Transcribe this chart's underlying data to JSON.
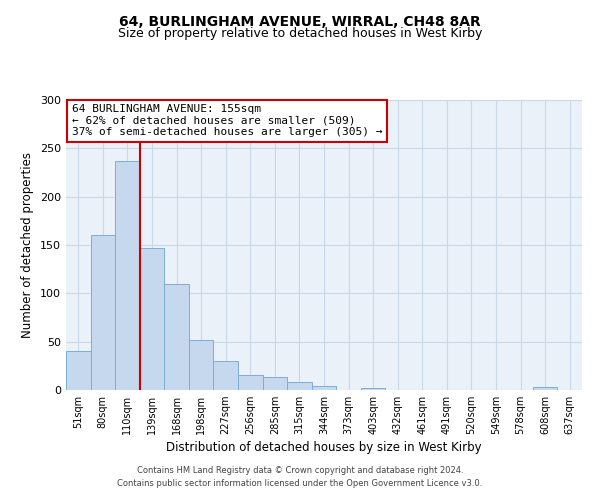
{
  "title": "64, BURLINGHAM AVENUE, WIRRAL, CH48 8AR",
  "subtitle": "Size of property relative to detached houses in West Kirby",
  "xlabel": "Distribution of detached houses by size in West Kirby",
  "ylabel": "Number of detached properties",
  "bin_labels": [
    "51sqm",
    "80sqm",
    "110sqm",
    "139sqm",
    "168sqm",
    "198sqm",
    "227sqm",
    "256sqm",
    "285sqm",
    "315sqm",
    "344sqm",
    "373sqm",
    "403sqm",
    "432sqm",
    "461sqm",
    "491sqm",
    "520sqm",
    "549sqm",
    "578sqm",
    "608sqm",
    "637sqm"
  ],
  "bar_values": [
    40,
    160,
    237,
    147,
    110,
    52,
    30,
    16,
    13,
    8,
    4,
    0,
    2,
    0,
    0,
    0,
    0,
    0,
    0,
    3,
    0
  ],
  "bar_color": "#c5d8ed",
  "bar_edge_color": "#7bafd4",
  "vline_x": 2.5,
  "vline_color": "#cc0000",
  "annotation_text": "64 BURLINGHAM AVENUE: 155sqm\n← 62% of detached houses are smaller (509)\n37% of semi-detached houses are larger (305) →",
  "annotation_box_color": "#ffffff",
  "annotation_box_edge_color": "#cc0000",
  "ylim": [
    0,
    300
  ],
  "yticks": [
    0,
    50,
    100,
    150,
    200,
    250,
    300
  ],
  "grid_color": "#c8d8e8",
  "background_color": "#eaf1f8",
  "footer_line1": "Contains HM Land Registry data © Crown copyright and database right 2024.",
  "footer_line2": "Contains public sector information licensed under the Open Government Licence v3.0.",
  "title_fontsize": 10,
  "subtitle_fontsize": 9,
  "xlabel_fontsize": 8.5,
  "ylabel_fontsize": 8.5,
  "annotation_fontsize": 8
}
